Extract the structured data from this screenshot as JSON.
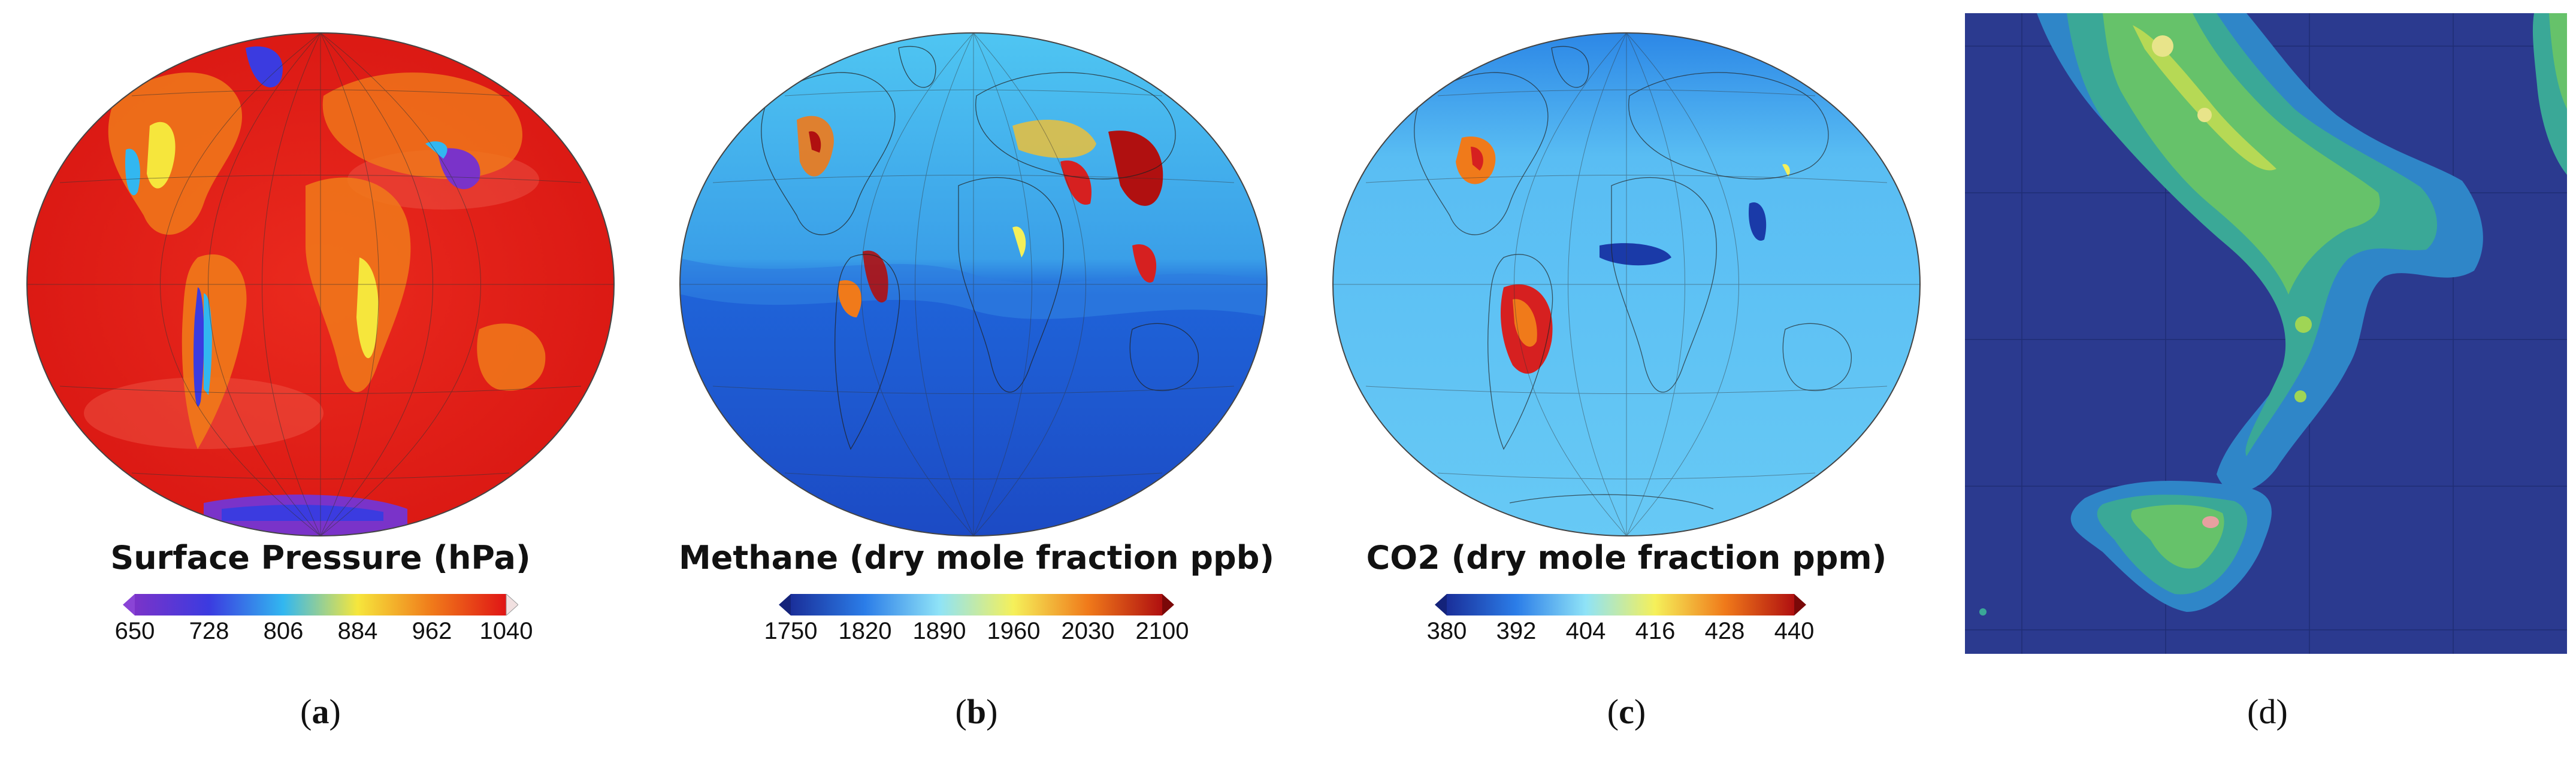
{
  "panels": [
    {
      "id": "a",
      "label_open": "(",
      "label_letter": "a",
      "label_close": ")",
      "letter_bold": true,
      "colorbar_title": "Surface Pressure (hPa)",
      "ticks": [
        "650",
        "728",
        "806",
        "884",
        "962",
        "1040"
      ],
      "colormap": [
        "#7a33c9",
        "#3b3be0",
        "#32b7f0",
        "#f6e63c",
        "#f07a1a",
        "#e01515"
      ]
    },
    {
      "id": "b",
      "label_open": "(",
      "label_letter": "b",
      "label_close": ")",
      "letter_bold": true,
      "colorbar_title": "Methane (dry mole fraction ppb)",
      "ticks": [
        "1750",
        "1820",
        "1890",
        "1960",
        "2030",
        "2100"
      ],
      "colormap": [
        "#1a2f9a",
        "#2b7de8",
        "#8fe3f7",
        "#f5f05a",
        "#f07a1a",
        "#b01010"
      ]
    },
    {
      "id": "c",
      "label_open": "(",
      "label_letter": "c",
      "label_close": ")",
      "letter_bold": true,
      "colorbar_title": "CO2 (dry mole fraction ppm)",
      "ticks": [
        "380",
        "392",
        "404",
        "416",
        "428",
        "440"
      ],
      "colormap": [
        "#1a2f9a",
        "#2b7de8",
        "#8fe3f7",
        "#f5f05a",
        "#f07a1a",
        "#b01010"
      ]
    },
    {
      "id": "d",
      "label_open": "(",
      "label_letter": "d",
      "label_close": ")",
      "letter_bold": false
    }
  ]
}
